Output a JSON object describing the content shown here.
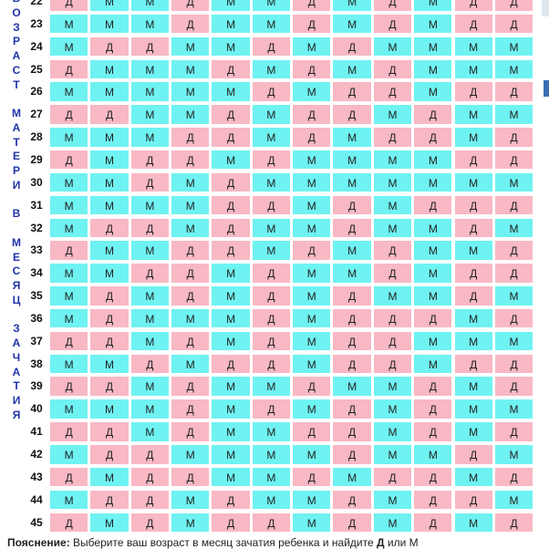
{
  "side_label": [
    "В",
    "О",
    "З",
    "Р",
    "А",
    "С",
    "Т",
    "",
    "М",
    "А",
    "Т",
    "Е",
    "Р",
    "И",
    "",
    "В",
    "",
    "М",
    "Е",
    "С",
    "Я",
    "Ц",
    "",
    "З",
    "А",
    "Ч",
    "А",
    "Т",
    "И",
    "Я"
  ],
  "rows": [
    {
      "age": "22",
      "cells": [
        "Д",
        "М",
        "М",
        "Д",
        "М",
        "М",
        "Д",
        "М",
        "Д",
        "М",
        "Д",
        "Д"
      ]
    },
    {
      "age": "23",
      "cells": [
        "М",
        "М",
        "М",
        "Д",
        "М",
        "М",
        "Д",
        "М",
        "Д",
        "М",
        "Д",
        "Д"
      ]
    },
    {
      "age": "24",
      "cells": [
        "М",
        "Д",
        "Д",
        "М",
        "М",
        "Д",
        "М",
        "Д",
        "М",
        "М",
        "М",
        "М"
      ]
    },
    {
      "age": "25",
      "cells": [
        "Д",
        "М",
        "М",
        "М",
        "Д",
        "М",
        "Д",
        "М",
        "Д",
        "М",
        "М",
        "М"
      ]
    },
    {
      "age": "26",
      "cells": [
        "М",
        "М",
        "М",
        "М",
        "М",
        "Д",
        "М",
        "Д",
        "Д",
        "М",
        "Д",
        "Д"
      ]
    },
    {
      "age": "27",
      "cells": [
        "Д",
        "Д",
        "М",
        "М",
        "Д",
        "М",
        "Д",
        "Д",
        "М",
        "Д",
        "М",
        "М"
      ]
    },
    {
      "age": "28",
      "cells": [
        "М",
        "М",
        "М",
        "Д",
        "Д",
        "М",
        "Д",
        "М",
        "Д",
        "Д",
        "М",
        "Д"
      ]
    },
    {
      "age": "29",
      "cells": [
        "Д",
        "М",
        "Д",
        "Д",
        "М",
        "Д",
        "М",
        "М",
        "М",
        "М",
        "Д",
        "Д"
      ]
    },
    {
      "age": "30",
      "cells": [
        "М",
        "М",
        "Д",
        "М",
        "Д",
        "М",
        "М",
        "М",
        "М",
        "М",
        "М",
        "М"
      ]
    },
    {
      "age": "31",
      "cells": [
        "М",
        "М",
        "М",
        "М",
        "Д",
        "Д",
        "М",
        "Д",
        "М",
        "Д",
        "Д",
        "Д"
      ]
    },
    {
      "age": "32",
      "cells": [
        "М",
        "Д",
        "Д",
        "М",
        "Д",
        "М",
        "М",
        "Д",
        "М",
        "М",
        "Д",
        "М"
      ]
    },
    {
      "age": "33",
      "cells": [
        "Д",
        "М",
        "М",
        "Д",
        "Д",
        "М",
        "Д",
        "М",
        "Д",
        "М",
        "М",
        "Д"
      ]
    },
    {
      "age": "34",
      "cells": [
        "М",
        "М",
        "Д",
        "Д",
        "М",
        "Д",
        "М",
        "М",
        "Д",
        "М",
        "Д",
        "Д"
      ]
    },
    {
      "age": "35",
      "cells": [
        "М",
        "Д",
        "М",
        "Д",
        "М",
        "Д",
        "М",
        "Д",
        "М",
        "М",
        "Д",
        "М"
      ]
    },
    {
      "age": "36",
      "cells": [
        "М",
        "Д",
        "М",
        "М",
        "М",
        "Д",
        "М",
        "Д",
        "Д",
        "Д",
        "М",
        "Д"
      ]
    },
    {
      "age": "37",
      "cells": [
        "Д",
        "Д",
        "М",
        "Д",
        "М",
        "Д",
        "М",
        "Д",
        "Д",
        "М",
        "М",
        "М"
      ]
    },
    {
      "age": "38",
      "cells": [
        "М",
        "М",
        "Д",
        "М",
        "Д",
        "Д",
        "М",
        "Д",
        "Д",
        "М",
        "Д",
        "Д"
      ]
    },
    {
      "age": "39",
      "cells": [
        "Д",
        "Д",
        "М",
        "Д",
        "М",
        "М",
        "Д",
        "М",
        "М",
        "Д",
        "М",
        "Д"
      ]
    },
    {
      "age": "40",
      "cells": [
        "М",
        "М",
        "М",
        "Д",
        "М",
        "Д",
        "М",
        "Д",
        "М",
        "Д",
        "М",
        "М"
      ]
    },
    {
      "age": "41",
      "cells": [
        "Д",
        "Д",
        "М",
        "Д",
        "М",
        "М",
        "Д",
        "Д",
        "М",
        "Д",
        "М",
        "Д"
      ]
    },
    {
      "age": "42",
      "cells": [
        "М",
        "Д",
        "Д",
        "М",
        "М",
        "М",
        "М",
        "Д",
        "М",
        "М",
        "Д",
        "М"
      ]
    },
    {
      "age": "43",
      "cells": [
        "Д",
        "М",
        "Д",
        "Д",
        "М",
        "М",
        "Д",
        "М",
        "Д",
        "Д",
        "М",
        "Д"
      ]
    },
    {
      "age": "44",
      "cells": [
        "М",
        "Д",
        "Д",
        "М",
        "Д",
        "М",
        "М",
        "Д",
        "М",
        "Д",
        "Д",
        "М"
      ]
    },
    {
      "age": "45",
      "cells": [
        "Д",
        "М",
        "Д",
        "М",
        "Д",
        "Д",
        "М",
        "Д",
        "М",
        "Д",
        "М",
        "Д"
      ]
    }
  ],
  "footer": {
    "bold_start": "Пояснение:",
    "text": " Выберите ваш возраст в месяц зачатия ребенка и найдите ",
    "bold_end": "Д",
    "tail": " или М"
  },
  "colors": {
    "boy": "#6ff2f2",
    "girl": "#f8b8c4",
    "label": "#2233aa"
  }
}
